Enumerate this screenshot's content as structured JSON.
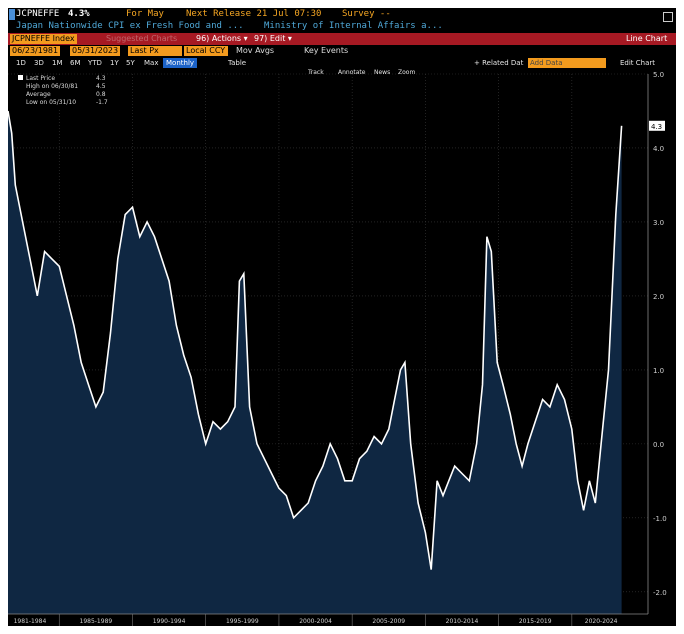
{
  "header": {
    "ticker": "JCPNEFFE",
    "last_value": "4.3%",
    "for_label": "For May",
    "next_release": "Next Release 21 Jul 07:30",
    "survey": "Survey --",
    "description": "Japan Nationwide CPI ex Fresh Food and ...",
    "source": "Ministry of Internal Affairs a..."
  },
  "toolbar": {
    "index_field": "JCPNEFFE Index",
    "suggested_charts": "Suggested Charts",
    "actions": "96) Actions ▾",
    "edit": "97) Edit ▾",
    "line_chart": "Line Chart",
    "start_date": "06/23/1981",
    "end_date": "05/31/2023",
    "price_field": "Last Px",
    "currency_field": "Local CCY",
    "mov_avgs": "Mov Avgs",
    "key_events": "Key Events",
    "ranges": [
      "1D",
      "3D",
      "1M",
      "6M",
      "YTD",
      "1Y",
      "5Y",
      "Max"
    ],
    "frequency": "Monthly",
    "table": "Table",
    "related_data": "+ Related Dat",
    "add_data": "Add Data",
    "edit_chart": "Edit Chart",
    "track": "Track",
    "annotate": "Annotate",
    "news": "News",
    "zoom": "Zoom"
  },
  "legend": {
    "last_price_label": "Last Price",
    "last_price_value": "4.3",
    "high_label": "High on 06/30/81",
    "high_value": "4.5",
    "average_label": "Average",
    "average_value": "0.8",
    "low_label": "Low on 05/31/10",
    "low_value": "-1.7"
  },
  "chart_data": {
    "type": "area",
    "series": [
      {
        "x": [
          1981.5,
          1981.75,
          1982.0,
          1982.5,
          1983.0,
          1983.5,
          1984.0,
          1984.5,
          1985.0,
          1985.5,
          1986.0,
          1986.5,
          1987.0,
          1987.5,
          1988.0,
          1988.5,
          1989.0,
          1989.5,
          1990.0,
          1990.5,
          1991.0,
          1991.5,
          1992.0,
          1992.5,
          1993.0,
          1993.5,
          1994.0,
          1994.5,
          1995.0,
          1995.5,
          1996.0,
          1996.5,
          1997.0,
          1997.3,
          1997.6,
          1998.0,
          1998.5,
          1999.0,
          1999.5,
          2000.0,
          2000.5,
          2001.0,
          2001.5,
          2002.0,
          2002.5,
          2003.0,
          2003.5,
          2004.0,
          2004.5,
          2005.0,
          2005.5,
          2006.0,
          2006.5,
          2007.0,
          2007.5,
          2007.9,
          2008.3,
          2008.6,
          2009.0,
          2009.5,
          2010.0,
          2010.4,
          2010.8,
          2011.2,
          2011.6,
          2012.0,
          2012.5,
          2013.0,
          2013.5,
          2013.9,
          2014.2,
          2014.5,
          2014.9,
          2015.3,
          2015.8,
          2016.2,
          2016.6,
          2017.0,
          2017.5,
          2018.0,
          2018.5,
          2019.0,
          2019.5,
          2020.0,
          2020.4,
          2020.8,
          2021.2,
          2021.6,
          2022.0,
          2022.5,
          2023.0,
          2023.4
        ],
        "y": [
          4.5,
          4.2,
          3.5,
          3.0,
          2.5,
          2.0,
          2.6,
          2.5,
          2.4,
          2.0,
          1.6,
          1.1,
          0.8,
          0.5,
          0.7,
          1.5,
          2.5,
          3.1,
          3.2,
          2.8,
          3.0,
          2.8,
          2.5,
          2.2,
          1.6,
          1.2,
          0.9,
          0.4,
          0.0,
          0.3,
          0.2,
          0.3,
          0.5,
          2.2,
          2.3,
          0.5,
          0.0,
          -0.2,
          -0.4,
          -0.6,
          -0.7,
          -1.0,
          -0.9,
          -0.8,
          -0.5,
          -0.3,
          0.0,
          -0.2,
          -0.5,
          -0.5,
          -0.2,
          -0.1,
          0.1,
          0.0,
          0.2,
          0.6,
          1.0,
          1.1,
          0.0,
          -0.8,
          -1.2,
          -1.7,
          -0.5,
          -0.7,
          -0.5,
          -0.3,
          -0.4,
          -0.5,
          0.0,
          0.8,
          2.8,
          2.6,
          1.1,
          0.8,
          0.4,
          0.0,
          -0.3,
          0.0,
          0.3,
          0.6,
          0.5,
          0.8,
          0.6,
          0.2,
          -0.5,
          -0.9,
          -0.5,
          -0.8,
          0.0,
          1.0,
          3.1,
          4.3
        ]
      }
    ],
    "xlabels": [
      "1981-1984",
      "1985-1989",
      "1990-1994",
      "1995-1999",
      "2000-2004",
      "2005-2009",
      "2010-2014",
      "2015-2019",
      "2020-2024"
    ],
    "xlabel_centers": [
      1983.0,
      1987.5,
      1992.5,
      1997.5,
      2002.5,
      2007.5,
      2012.5,
      2017.5,
      2022.0
    ],
    "xdividers": [
      1985,
      1990,
      1995,
      2000,
      2005,
      2010,
      2015,
      2020
    ],
    "xlim": [
      1981.5,
      2025.2
    ],
    "ylim": [
      -2.3,
      5.0
    ],
    "yticks": [
      -2.0,
      -1.0,
      0.0,
      1.0,
      2.0,
      3.0,
      4.0,
      5.0
    ],
    "ytick_labels": [
      "-2.0",
      "-1.0",
      "0.0",
      "1.0",
      "2.0",
      "3.0",
      "4.0",
      "5.0"
    ],
    "last_value_label": "4.3",
    "grid": true,
    "colors": {
      "line": "#ffffff",
      "fill": "#0f2742",
      "background": "#000000",
      "grid": "#3a3a3a"
    }
  }
}
